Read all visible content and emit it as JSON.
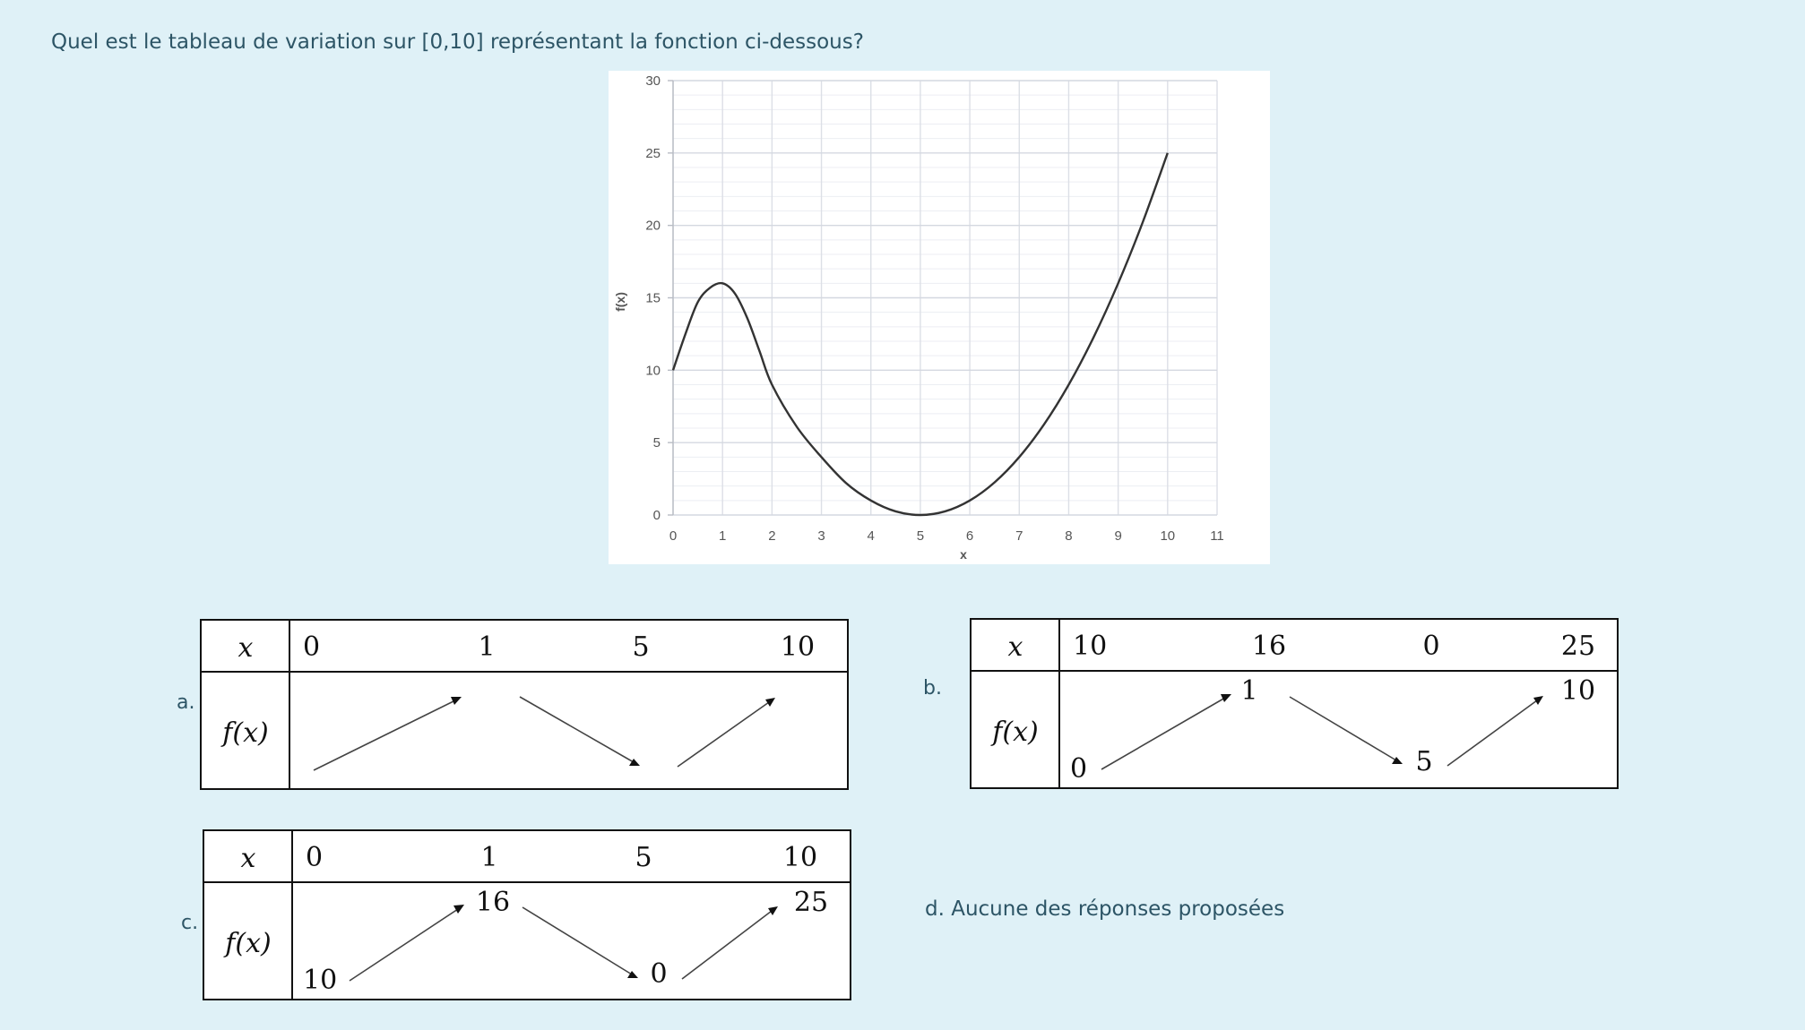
{
  "question": "Quel est le tableau de variation sur [0,10] représentant la fonction ci-dessous?",
  "chart_data": {
    "type": "line",
    "xlabel": "x",
    "ylabel": "f(x)",
    "xlim": [
      0,
      11
    ],
    "ylim": [
      0,
      30
    ],
    "x_ticks": [
      "0",
      "1",
      "2",
      "3",
      "4",
      "5",
      "6",
      "7",
      "8",
      "9",
      "10",
      "11"
    ],
    "y_ticks": [
      "0",
      "5",
      "10",
      "15",
      "20",
      "25",
      "30"
    ],
    "grid": true,
    "series": [
      {
        "x": [
          0,
          0.25,
          0.5,
          0.75,
          1,
          1.25,
          1.5,
          1.75,
          2,
          2.5,
          3,
          3.5,
          4,
          4.5,
          5,
          5.5,
          6,
          6.5,
          7,
          7.5,
          8,
          8.5,
          9,
          9.5,
          10
        ],
        "y": [
          10,
          12.5,
          14.7,
          15.7,
          16,
          15.3,
          13.6,
          11.3,
          9,
          6.1,
          4,
          2.2,
          1,
          0.25,
          0,
          0.25,
          1,
          2.25,
          4,
          6.25,
          9,
          12.25,
          16,
          20.25,
          25
        ],
        "color": "#333333"
      }
    ]
  },
  "options": {
    "a": {
      "label": "a.",
      "x_header": "x",
      "fx_header": "f(x)",
      "x_values": [
        "0",
        "1",
        "5",
        "10"
      ],
      "f_values": [
        "",
        "",
        "",
        ""
      ]
    },
    "b": {
      "label": "b.",
      "x_header": "x",
      "fx_header": "f(x)",
      "x_values": [
        "10",
        "16",
        "0",
        "25"
      ],
      "f_values": [
        "0",
        "1",
        "5",
        "10"
      ]
    },
    "c": {
      "label": "c.",
      "x_header": "x",
      "fx_header": "f(x)",
      "x_values": [
        "0",
        "1",
        "5",
        "10"
      ],
      "f_values": [
        "10",
        "16",
        "0",
        "25"
      ]
    },
    "d": {
      "text": "d. Aucune des réponses proposées"
    }
  }
}
